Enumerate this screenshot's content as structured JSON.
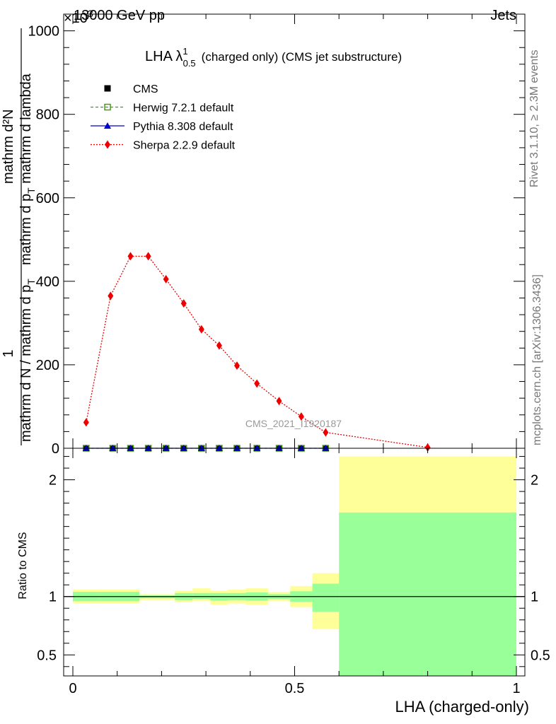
{
  "header": {
    "energy": "13000 GeV pp",
    "process": "Jets",
    "exponent": "×10",
    "exponent_power": "3",
    "side_rivet": "Rivet 3.1.10, ≥ 2.3M events",
    "side_mcplots": "mcplots.cern.ch [arXiv:1306.3436]",
    "analysis_id": "CMS_2021_I1920187"
  },
  "chart_data": [
    {
      "type": "line",
      "title_main": "LHA λ",
      "title_super": "1",
      "title_sub": "0.5",
      "title_rest": "(charged only) (CMS jet substructure)",
      "ylabel_numerator": "1",
      "ylabel_denominator": "mathrm d N / mathrm d p",
      "ylabel_denominator_sub": "T",
      "ylabel_second_num": "mathrm d²N",
      "ylabel_second_den": "mathrm d p",
      "ylabel_second_den_sub": "T",
      "ylabel_second_den_rest": "mathrm d lambda",
      "ylim": [
        0,
        1040
      ],
      "yticks": [
        0,
        200,
        400,
        600,
        800,
        1000
      ],
      "ytick_labels": [
        "0",
        "200",
        "400",
        "600",
        "800",
        "1000"
      ],
      "xlim": [
        0,
        1
      ],
      "grid": false,
      "legend_position": "top-left",
      "series": [
        {
          "name": "CMS",
          "color": "#000000",
          "marker": "square",
          "x": [
            0.03,
            0.09,
            0.13,
            0.17,
            0.21,
            0.25,
            0.29,
            0.33,
            0.37,
            0.415,
            0.465,
            0.515,
            0.57
          ],
          "y": [
            0,
            0,
            0,
            0,
            0,
            0,
            0,
            0,
            0,
            0,
            0,
            0,
            0
          ]
        },
        {
          "name": "Herwig 7.2.1 default",
          "color": "#4a9a1a",
          "marker": "open-square",
          "x": [
            0.03,
            0.09,
            0.13,
            0.17,
            0.21,
            0.25,
            0.29,
            0.33,
            0.37,
            0.415,
            0.465,
            0.515,
            0.57
          ],
          "y": [
            0,
            0,
            0,
            0,
            0,
            0,
            0,
            0,
            0,
            0,
            0,
            0,
            0
          ]
        },
        {
          "name": "Pythia 8.308 default",
          "color": "#0000cc",
          "marker": "triangle",
          "x": [
            0.03,
            0.09,
            0.13,
            0.17,
            0.21,
            0.25,
            0.29,
            0.33,
            0.37,
            0.415,
            0.465,
            0.515,
            0.57
          ],
          "y": [
            0,
            0,
            0,
            0,
            0,
            0,
            0,
            0,
            0,
            0,
            0,
            0,
            0
          ]
        },
        {
          "name": "Sherpa 2.2.9 default",
          "color": "#ee0000",
          "marker": "diamond",
          "x": [
            0.03,
            0.085,
            0.13,
            0.17,
            0.21,
            0.25,
            0.29,
            0.33,
            0.37,
            0.415,
            0.465,
            0.515,
            0.57,
            0.8
          ],
          "y": [
            62,
            365,
            460,
            460,
            405,
            347,
            285,
            246,
            198,
            155,
            113,
            76,
            38,
            2
          ]
        }
      ]
    },
    {
      "type": "area",
      "ylabel": "Ratio to CMS",
      "xlabel": "LHA (charged-only)",
      "xlim": [
        0,
        1
      ],
      "ylim": [
        0.32,
        2.27
      ],
      "yticks": [
        0.5,
        1,
        2
      ],
      "ytick_labels": [
        "0.5",
        "1",
        "2"
      ],
      "xticks": [
        0,
        0.5,
        1
      ],
      "xtick_labels": [
        "0",
        "0.5",
        "1"
      ],
      "reference_line": 1,
      "bands": {
        "bins": [
          [
            0,
            0.06
          ],
          [
            0.06,
            0.11
          ],
          [
            0.11,
            0.15
          ],
          [
            0.15,
            0.19
          ],
          [
            0.19,
            0.23
          ],
          [
            0.23,
            0.27
          ],
          [
            0.27,
            0.31
          ],
          [
            0.31,
            0.35
          ],
          [
            0.35,
            0.39
          ],
          [
            0.39,
            0.44
          ],
          [
            0.44,
            0.49
          ],
          [
            0.49,
            0.54
          ],
          [
            0.54,
            0.6
          ],
          [
            0.6,
            1.0
          ]
        ],
        "outer_color": "#ffff99",
        "inner_color": "#99ff99",
        "outer_low": [
          0.94,
          0.94,
          0.94,
          0.97,
          0.97,
          0.95,
          0.96,
          0.93,
          0.94,
          0.93,
          0.96,
          0.91,
          0.72,
          0.32
        ],
        "outer_high": [
          1.06,
          1.06,
          1.06,
          1.02,
          1.02,
          1.05,
          1.07,
          1.05,
          1.06,
          1.07,
          1.04,
          1.09,
          1.2,
          2.2
        ],
        "inner_low": [
          0.96,
          0.96,
          0.96,
          0.985,
          0.985,
          0.97,
          0.98,
          0.965,
          0.97,
          0.965,
          0.98,
          0.955,
          0.87,
          0.32
        ],
        "inner_high": [
          1.04,
          1.04,
          1.04,
          1.01,
          1.01,
          1.03,
          1.03,
          1.03,
          1.03,
          1.035,
          1.02,
          1.045,
          1.11,
          1.72
        ]
      }
    }
  ]
}
